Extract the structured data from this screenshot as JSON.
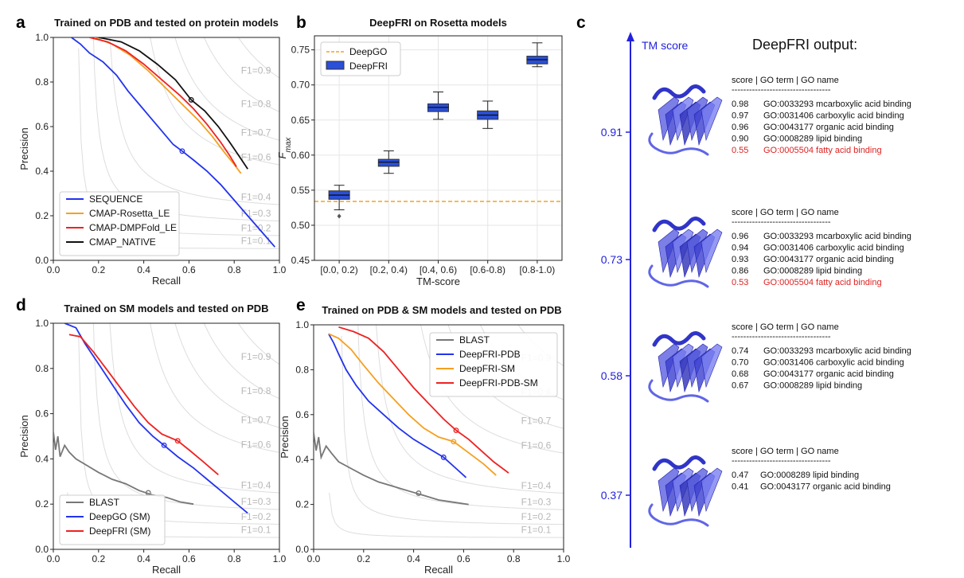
{
  "panel_letters": [
    "a",
    "b",
    "c",
    "d",
    "e"
  ],
  "chart_data": [
    {
      "id": "a",
      "type": "line",
      "title": "Trained on PDB and tested on protein models",
      "xlabel": "Recall",
      "ylabel": "Precision",
      "xlim": [
        0,
        1
      ],
      "ylim": [
        0,
        1
      ],
      "xticks": [
        "0.0",
        "0.2",
        "0.4",
        "0.6",
        "0.8",
        "1.0"
      ],
      "yticks": [
        "0.0",
        "0.2",
        "0.4",
        "0.6",
        "0.8",
        "1.0"
      ],
      "f1_labels": [
        "F1=0.9",
        "F1=0.8",
        "F1=0.7",
        "F1=0.6",
        "F1=0.4",
        "F1=0.3",
        "F1=0.2",
        "F1=0.1"
      ],
      "legend_position": "lower-left",
      "series": [
        {
          "name": "SEQUENCE",
          "color": "#2233ee",
          "points": [
            [
              0.08,
              1.0
            ],
            [
              0.12,
              0.97
            ],
            [
              0.16,
              0.93
            ],
            [
              0.22,
              0.89
            ],
            [
              0.28,
              0.83
            ],
            [
              0.33,
              0.76
            ],
            [
              0.38,
              0.7
            ],
            [
              0.43,
              0.64
            ],
            [
              0.48,
              0.58
            ],
            [
              0.53,
              0.52
            ],
            [
              0.57,
              0.49
            ],
            [
              0.62,
              0.45
            ],
            [
              0.68,
              0.4
            ],
            [
              0.74,
              0.34
            ],
            [
              0.8,
              0.27
            ],
            [
              0.86,
              0.2
            ],
            [
              0.92,
              0.13
            ],
            [
              0.98,
              0.06
            ]
          ],
          "marker": [
            0.57,
            0.49
          ]
        },
        {
          "name": "CMAP-Rosetta_LE",
          "color": "#f5a020",
          "points": [
            [
              0.18,
              1.0
            ],
            [
              0.26,
              0.97
            ],
            [
              0.34,
              0.92
            ],
            [
              0.42,
              0.85
            ],
            [
              0.5,
              0.77
            ],
            [
              0.58,
              0.69
            ],
            [
              0.64,
              0.63
            ],
            [
              0.7,
              0.56
            ],
            [
              0.76,
              0.48
            ],
            [
              0.8,
              0.43
            ],
            [
              0.83,
              0.39
            ]
          ],
          "marker": null
        },
        {
          "name": "CMAP-DMPFold_LE",
          "color": "#ee2222",
          "points": [
            [
              0.16,
              1.0
            ],
            [
              0.24,
              0.98
            ],
            [
              0.32,
              0.94
            ],
            [
              0.4,
              0.88
            ],
            [
              0.48,
              0.81
            ],
            [
              0.56,
              0.74
            ],
            [
              0.62,
              0.68
            ],
            [
              0.68,
              0.61
            ],
            [
              0.74,
              0.53
            ],
            [
              0.78,
              0.47
            ],
            [
              0.81,
              0.42
            ]
          ],
          "marker": null
        },
        {
          "name": "CMAP_NATIVE",
          "color": "#111111",
          "points": [
            [
              0.2,
              1.0
            ],
            [
              0.3,
              0.98
            ],
            [
              0.38,
              0.94
            ],
            [
              0.46,
              0.88
            ],
            [
              0.54,
              0.81
            ],
            [
              0.61,
              0.72
            ],
            [
              0.67,
              0.67
            ],
            [
              0.73,
              0.6
            ],
            [
              0.78,
              0.53
            ],
            [
              0.82,
              0.47
            ],
            [
              0.86,
              0.41
            ]
          ],
          "marker": [
            0.61,
            0.72
          ]
        }
      ]
    },
    {
      "id": "b",
      "type": "box",
      "title": "DeepFRI on Rosetta models",
      "xlabel": "TM-score",
      "ylabel": "F",
      "ylabel_sub": "max",
      "ylim": [
        0.45,
        0.77
      ],
      "yticks": [
        "0.45",
        "0.50",
        "0.55",
        "0.60",
        "0.65",
        "0.70",
        "0.75"
      ],
      "categories": [
        "[0.0, 0.2)",
        "[0.2, 0.4)",
        "[0.4, 0.6)",
        "[0.6-0.8)",
        "[0.8-1.0)"
      ],
      "boxes": [
        {
          "whislo": 0.522,
          "q1": 0.537,
          "med": 0.543,
          "q3": 0.549,
          "whishi": 0.557,
          "fliers": [
            0.513
          ]
        },
        {
          "whislo": 0.574,
          "q1": 0.584,
          "med": 0.59,
          "q3": 0.594,
          "whishi": 0.606,
          "fliers": []
        },
        {
          "whislo": 0.651,
          "q1": 0.662,
          "med": 0.668,
          "q3": 0.673,
          "whishi": 0.69,
          "fliers": []
        },
        {
          "whislo": 0.638,
          "q1": 0.651,
          "med": 0.657,
          "q3": 0.663,
          "whishi": 0.677,
          "fliers": []
        },
        {
          "whislo": 0.726,
          "q1": 0.73,
          "med": 0.736,
          "q3": 0.741,
          "whishi": 0.76,
          "fliers": []
        }
      ],
      "reference_line": {
        "name": "DeepGO",
        "value": 0.534,
        "color": "#f5a020"
      },
      "box_series_name": "DeepFRI",
      "box_color": "#2a4fd8",
      "legend_position": "upper-left"
    },
    {
      "id": "d",
      "type": "line",
      "title": "Trained on SM models and tested on PDB",
      "xlabel": "Recall",
      "ylabel": "Precision",
      "xlim": [
        0,
        1
      ],
      "ylim": [
        0,
        1
      ],
      "xticks": [
        "0.0",
        "0.2",
        "0.4",
        "0.6",
        "0.8",
        "1.0"
      ],
      "yticks": [
        "0.0",
        "0.2",
        "0.4",
        "0.6",
        "0.8",
        "1.0"
      ],
      "f1_labels": [
        "F1=0.9",
        "F1=0.8",
        "F1=0.7",
        "F1=0.6",
        "F1=0.4",
        "F1=0.3",
        "F1=0.2",
        "F1=0.1"
      ],
      "legend_position": "lower-left",
      "series": [
        {
          "name": "BLAST",
          "color": "#777777",
          "points": [
            [
              0.0,
              0.52
            ],
            [
              0.01,
              0.44
            ],
            [
              0.02,
              0.5
            ],
            [
              0.03,
              0.41
            ],
            [
              0.05,
              0.46
            ],
            [
              0.07,
              0.43
            ],
            [
              0.1,
              0.4
            ],
            [
              0.15,
              0.37
            ],
            [
              0.2,
              0.34
            ],
            [
              0.26,
              0.31
            ],
            [
              0.32,
              0.29
            ],
            [
              0.38,
              0.26
            ],
            [
              0.44,
              0.24
            ],
            [
              0.5,
              0.23
            ],
            [
              0.56,
              0.21
            ],
            [
              0.62,
              0.2
            ]
          ],
          "marker": [
            0.42,
            0.25
          ]
        },
        {
          "name": "DeepGO (SM)",
          "color": "#2233ee",
          "points": [
            [
              0.05,
              1.0
            ],
            [
              0.1,
              0.98
            ],
            [
              0.14,
              0.91
            ],
            [
              0.2,
              0.82
            ],
            [
              0.26,
              0.73
            ],
            [
              0.32,
              0.64
            ],
            [
              0.38,
              0.56
            ],
            [
              0.44,
              0.5
            ],
            [
              0.49,
              0.46
            ],
            [
              0.55,
              0.41
            ],
            [
              0.62,
              0.36
            ],
            [
              0.68,
              0.31
            ],
            [
              0.74,
              0.26
            ],
            [
              0.8,
              0.21
            ],
            [
              0.86,
              0.16
            ]
          ],
          "marker": [
            0.49,
            0.46
          ]
        },
        {
          "name": "DeepFRI (SM)",
          "color": "#ee2222",
          "points": [
            [
              0.07,
              0.95
            ],
            [
              0.12,
              0.94
            ],
            [
              0.18,
              0.87
            ],
            [
              0.24,
              0.79
            ],
            [
              0.3,
              0.71
            ],
            [
              0.36,
              0.63
            ],
            [
              0.42,
              0.56
            ],
            [
              0.48,
              0.51
            ],
            [
              0.55,
              0.48
            ],
            [
              0.6,
              0.44
            ],
            [
              0.66,
              0.39
            ],
            [
              0.73,
              0.33
            ]
          ],
          "marker": [
            0.55,
            0.48
          ]
        }
      ]
    },
    {
      "id": "e",
      "type": "line",
      "title": "Trained on PDB & SM models and tested on PDB",
      "xlabel": "Recall",
      "ylabel": "Precision",
      "xlim": [
        0,
        1
      ],
      "ylim": [
        0,
        1
      ],
      "xticks": [
        "0.0",
        "0.2",
        "0.4",
        "0.6",
        "0.8",
        "1.0"
      ],
      "yticks": [
        "0.0",
        "0.2",
        "0.4",
        "0.6",
        "0.8",
        "1.0"
      ],
      "f1_labels": [
        "F1=0.9",
        "F1=0.8",
        "F1=0.7",
        "F1=0.6",
        "F1=0.4",
        "F1=0.3",
        "F1=0.2",
        "F1=0.1"
      ],
      "legend_position": "upper-right",
      "series": [
        {
          "name": "BLAST",
          "color": "#777777",
          "points": [
            [
              0.0,
              0.52
            ],
            [
              0.01,
              0.44
            ],
            [
              0.02,
              0.5
            ],
            [
              0.03,
              0.41
            ],
            [
              0.05,
              0.46
            ],
            [
              0.07,
              0.43
            ],
            [
              0.1,
              0.39
            ],
            [
              0.15,
              0.36
            ],
            [
              0.2,
              0.33
            ],
            [
              0.26,
              0.3
            ],
            [
              0.32,
              0.28
            ],
            [
              0.38,
              0.26
            ],
            [
              0.44,
              0.24
            ],
            [
              0.5,
              0.22
            ],
            [
              0.56,
              0.21
            ],
            [
              0.62,
              0.2
            ]
          ],
          "marker": [
            0.42,
            0.25
          ]
        },
        {
          "name": "DeepFRI-PDB",
          "color": "#2233ee",
          "points": [
            [
              0.06,
              0.96
            ],
            [
              0.08,
              0.92
            ],
            [
              0.1,
              0.87
            ],
            [
              0.13,
              0.8
            ],
            [
              0.17,
              0.73
            ],
            [
              0.22,
              0.66
            ],
            [
              0.28,
              0.6
            ],
            [
              0.34,
              0.54
            ],
            [
              0.4,
              0.49
            ],
            [
              0.46,
              0.45
            ],
            [
              0.52,
              0.41
            ],
            [
              0.57,
              0.36
            ],
            [
              0.61,
              0.32
            ]
          ],
          "marker": [
            0.52,
            0.41
          ]
        },
        {
          "name": "DeepFRI-SM",
          "color": "#f5a020",
          "points": [
            [
              0.06,
              0.96
            ],
            [
              0.1,
              0.94
            ],
            [
              0.15,
              0.89
            ],
            [
              0.2,
              0.82
            ],
            [
              0.26,
              0.74
            ],
            [
              0.32,
              0.67
            ],
            [
              0.38,
              0.6
            ],
            [
              0.44,
              0.54
            ],
            [
              0.5,
              0.5
            ],
            [
              0.56,
              0.48
            ],
            [
              0.62,
              0.43
            ],
            [
              0.68,
              0.38
            ],
            [
              0.73,
              0.33
            ]
          ],
          "marker": [
            0.56,
            0.48
          ]
        },
        {
          "name": "DeepFRI-PDB-SM",
          "color": "#ee2222",
          "points": [
            [
              0.1,
              0.99
            ],
            [
              0.16,
              0.97
            ],
            [
              0.22,
              0.94
            ],
            [
              0.28,
              0.88
            ],
            [
              0.34,
              0.8
            ],
            [
              0.4,
              0.72
            ],
            [
              0.46,
              0.65
            ],
            [
              0.52,
              0.58
            ],
            [
              0.57,
              0.53
            ],
            [
              0.62,
              0.49
            ],
            [
              0.67,
              0.44
            ],
            [
              0.72,
              0.39
            ],
            [
              0.78,
              0.34
            ]
          ],
          "marker": [
            0.57,
            0.53
          ]
        }
      ]
    }
  ],
  "panel_c": {
    "axis_title": "TM score",
    "output_title": "DeepFRI output:",
    "header": "score | GO term | GO name",
    "separator": "----------------------------------",
    "axis_color": "#2222dd",
    "highlight_color": "#dd2222",
    "levels": [
      {
        "tm": "0.91",
        "rows": [
          {
            "score": "0.98",
            "go": "GO:0033293 mcarboxylic acid binding",
            "highlight": false
          },
          {
            "score": "0.97",
            "go": "GO:0031406 carboxylic acid binding",
            "highlight": false
          },
          {
            "score": "0.96",
            "go": "GO:0043177 organic acid binding",
            "highlight": false
          },
          {
            "score": "0.90",
            "go": "GO:0008289 lipid binding",
            "highlight": false
          },
          {
            "score": "0.55",
            "go": "GO:0005504 fatty acid binding",
            "highlight": true
          }
        ]
      },
      {
        "tm": "0.73",
        "rows": [
          {
            "score": "0.96",
            "go": "GO:0033293 mcarboxylic acid binding",
            "highlight": false
          },
          {
            "score": "0.94",
            "go": "GO:0031406 carboxylic acid binding",
            "highlight": false
          },
          {
            "score": "0.93",
            "go": "GO:0043177 organic acid binding",
            "highlight": false
          },
          {
            "score": "0.86",
            "go": "GO:0008289 lipid binding",
            "highlight": false
          },
          {
            "score": "0.53",
            "go": "GO:0005504 fatty acid binding",
            "highlight": true
          }
        ]
      },
      {
        "tm": "0.58",
        "rows": [
          {
            "score": "0.74",
            "go": "GO:0033293 mcarboxylic acid binding",
            "highlight": false
          },
          {
            "score": "0.70",
            "go": "GO:0031406 carboxylic acid binding",
            "highlight": false
          },
          {
            "score": "0.68",
            "go": "GO:0043177 organic acid binding",
            "highlight": false
          },
          {
            "score": "0.67",
            "go": "GO:0008289 lipid binding",
            "highlight": false
          }
        ]
      },
      {
        "tm": "0.37",
        "rows": [
          {
            "score": "0.47",
            "go": "GO:0008289 lipid binding",
            "highlight": false
          },
          {
            "score": "0.41",
            "go": "GO:0043177 organic acid binding",
            "highlight": false
          }
        ]
      }
    ]
  }
}
